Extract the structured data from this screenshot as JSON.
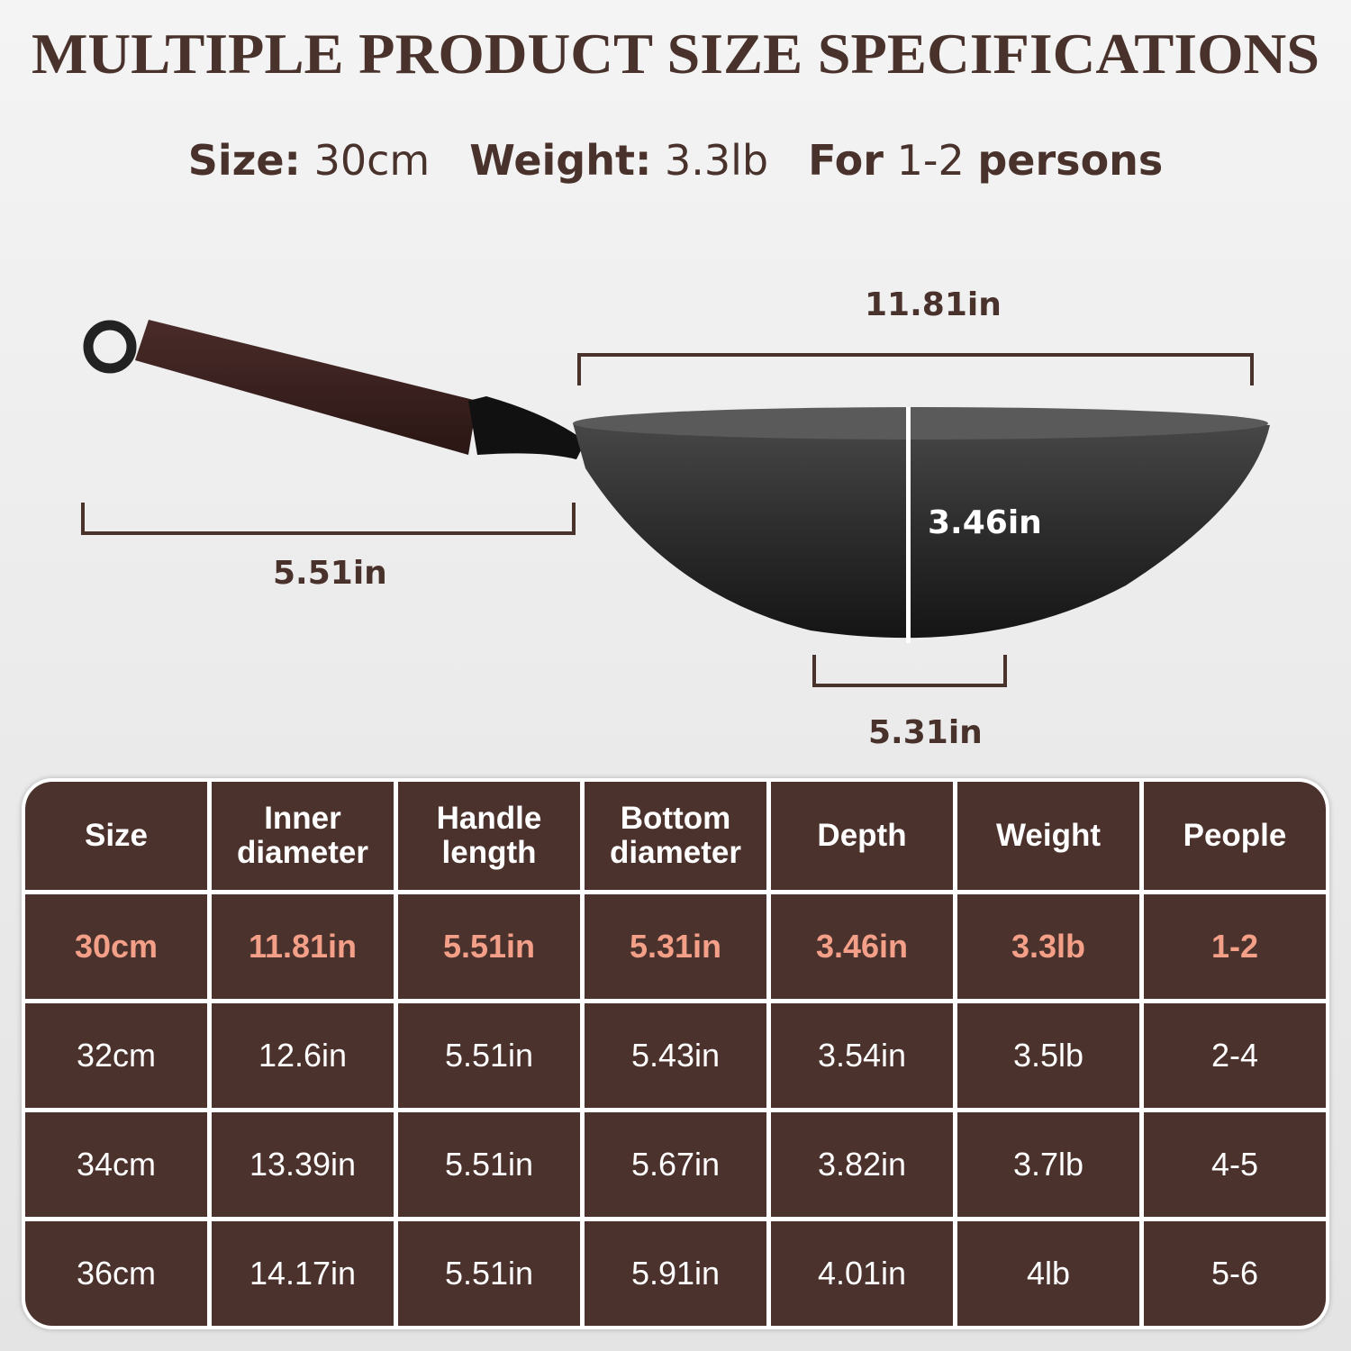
{
  "title": "MULTIPLE PRODUCT SIZE SPECIFICATIONS",
  "subtitle": {
    "size_label": "Size:",
    "size_value": "30cm",
    "weight_label": "Weight:",
    "weight_value": "3.3lb",
    "for_label": "For",
    "people_value": "1-2",
    "persons_label": "persons"
  },
  "dimensions": {
    "inner_diameter": "11.81in",
    "handle_length": "5.51in",
    "depth": "3.46in",
    "bottom_diameter": "5.31in"
  },
  "colors": {
    "brown": "#4c322d",
    "highlight": "#f4a088",
    "background": "#ececec"
  },
  "table": {
    "headers": [
      "Size",
      "Inner diameter",
      "Handle length",
      "Bottom diameter",
      "Depth",
      "Weight",
      "People"
    ],
    "rows": [
      [
        "30cm",
        "11.81in",
        "5.51in",
        "5.31in",
        "3.46in",
        "3.3lb",
        "1-2"
      ],
      [
        "32cm",
        "12.6in",
        "5.51in",
        "5.43in",
        "3.54in",
        "3.5lb",
        "2-4"
      ],
      [
        "34cm",
        "13.39in",
        "5.51in",
        "5.67in",
        "3.82in",
        "3.7lb",
        "4-5"
      ],
      [
        "36cm",
        "14.17in",
        "5.51in",
        "5.91in",
        "4.01in",
        "4lb",
        "5-6"
      ]
    ],
    "highlighted_row": 0
  }
}
